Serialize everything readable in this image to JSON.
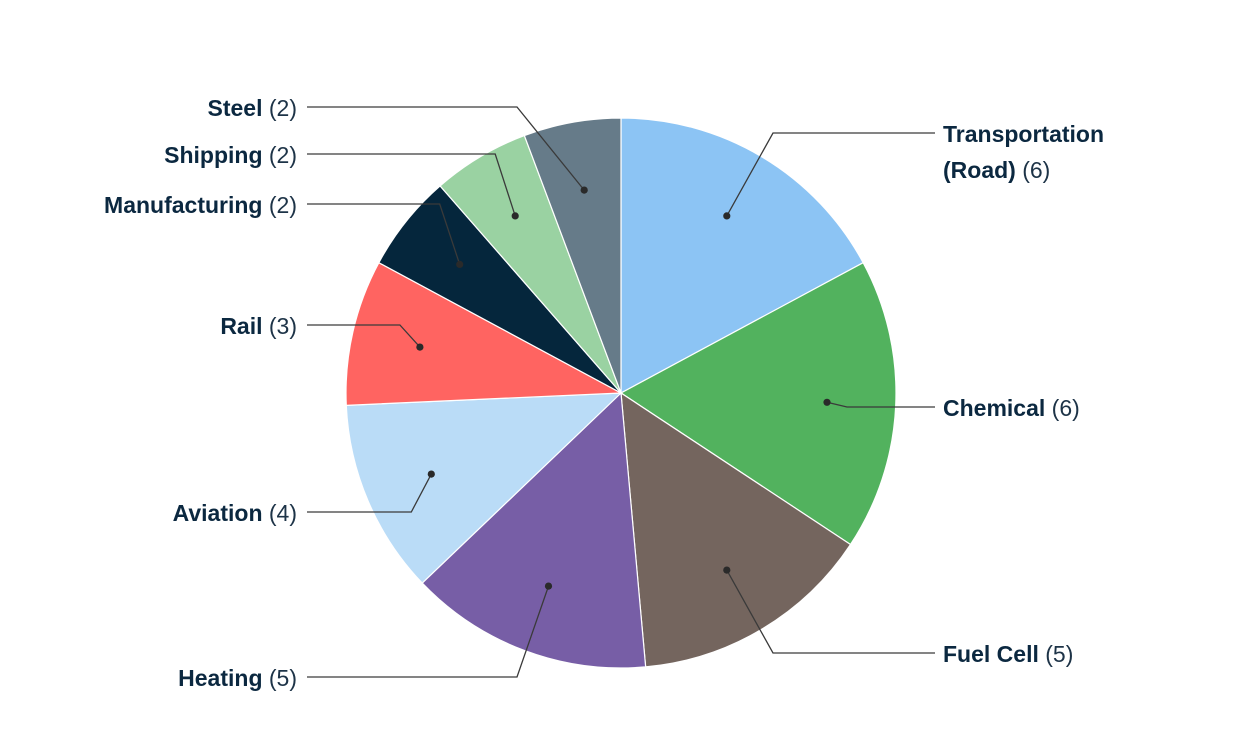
{
  "chart_data": {
    "type": "pie",
    "title": "",
    "legend": "none",
    "slices": [
      {
        "label": "Transportation (Road)",
        "value": 6,
        "color": "#8cc4f4",
        "side": "right",
        "lines": [
          "Transportation",
          "(Road)"
        ]
      },
      {
        "label": "Chemical",
        "value": 6,
        "color": "#52b25e",
        "side": "right"
      },
      {
        "label": "Fuel Cell",
        "value": 5,
        "color": "#74655e",
        "side": "right"
      },
      {
        "label": "Heating",
        "value": 5,
        "color": "#775ea6",
        "side": "left"
      },
      {
        "label": "Aviation",
        "value": 4,
        "color": "#badcf7",
        "side": "left"
      },
      {
        "label": "Rail",
        "value": 3,
        "color": "#ff6461",
        "side": "left"
      },
      {
        "label": "Manufacturing",
        "value": 2,
        "color": "#05263c",
        "side": "left"
      },
      {
        "label": "Shipping",
        "value": 2,
        "color": "#9ad2a2",
        "side": "left"
      },
      {
        "label": "Steel",
        "value": 2,
        "color": "#667b89",
        "side": "left"
      }
    ]
  }
}
